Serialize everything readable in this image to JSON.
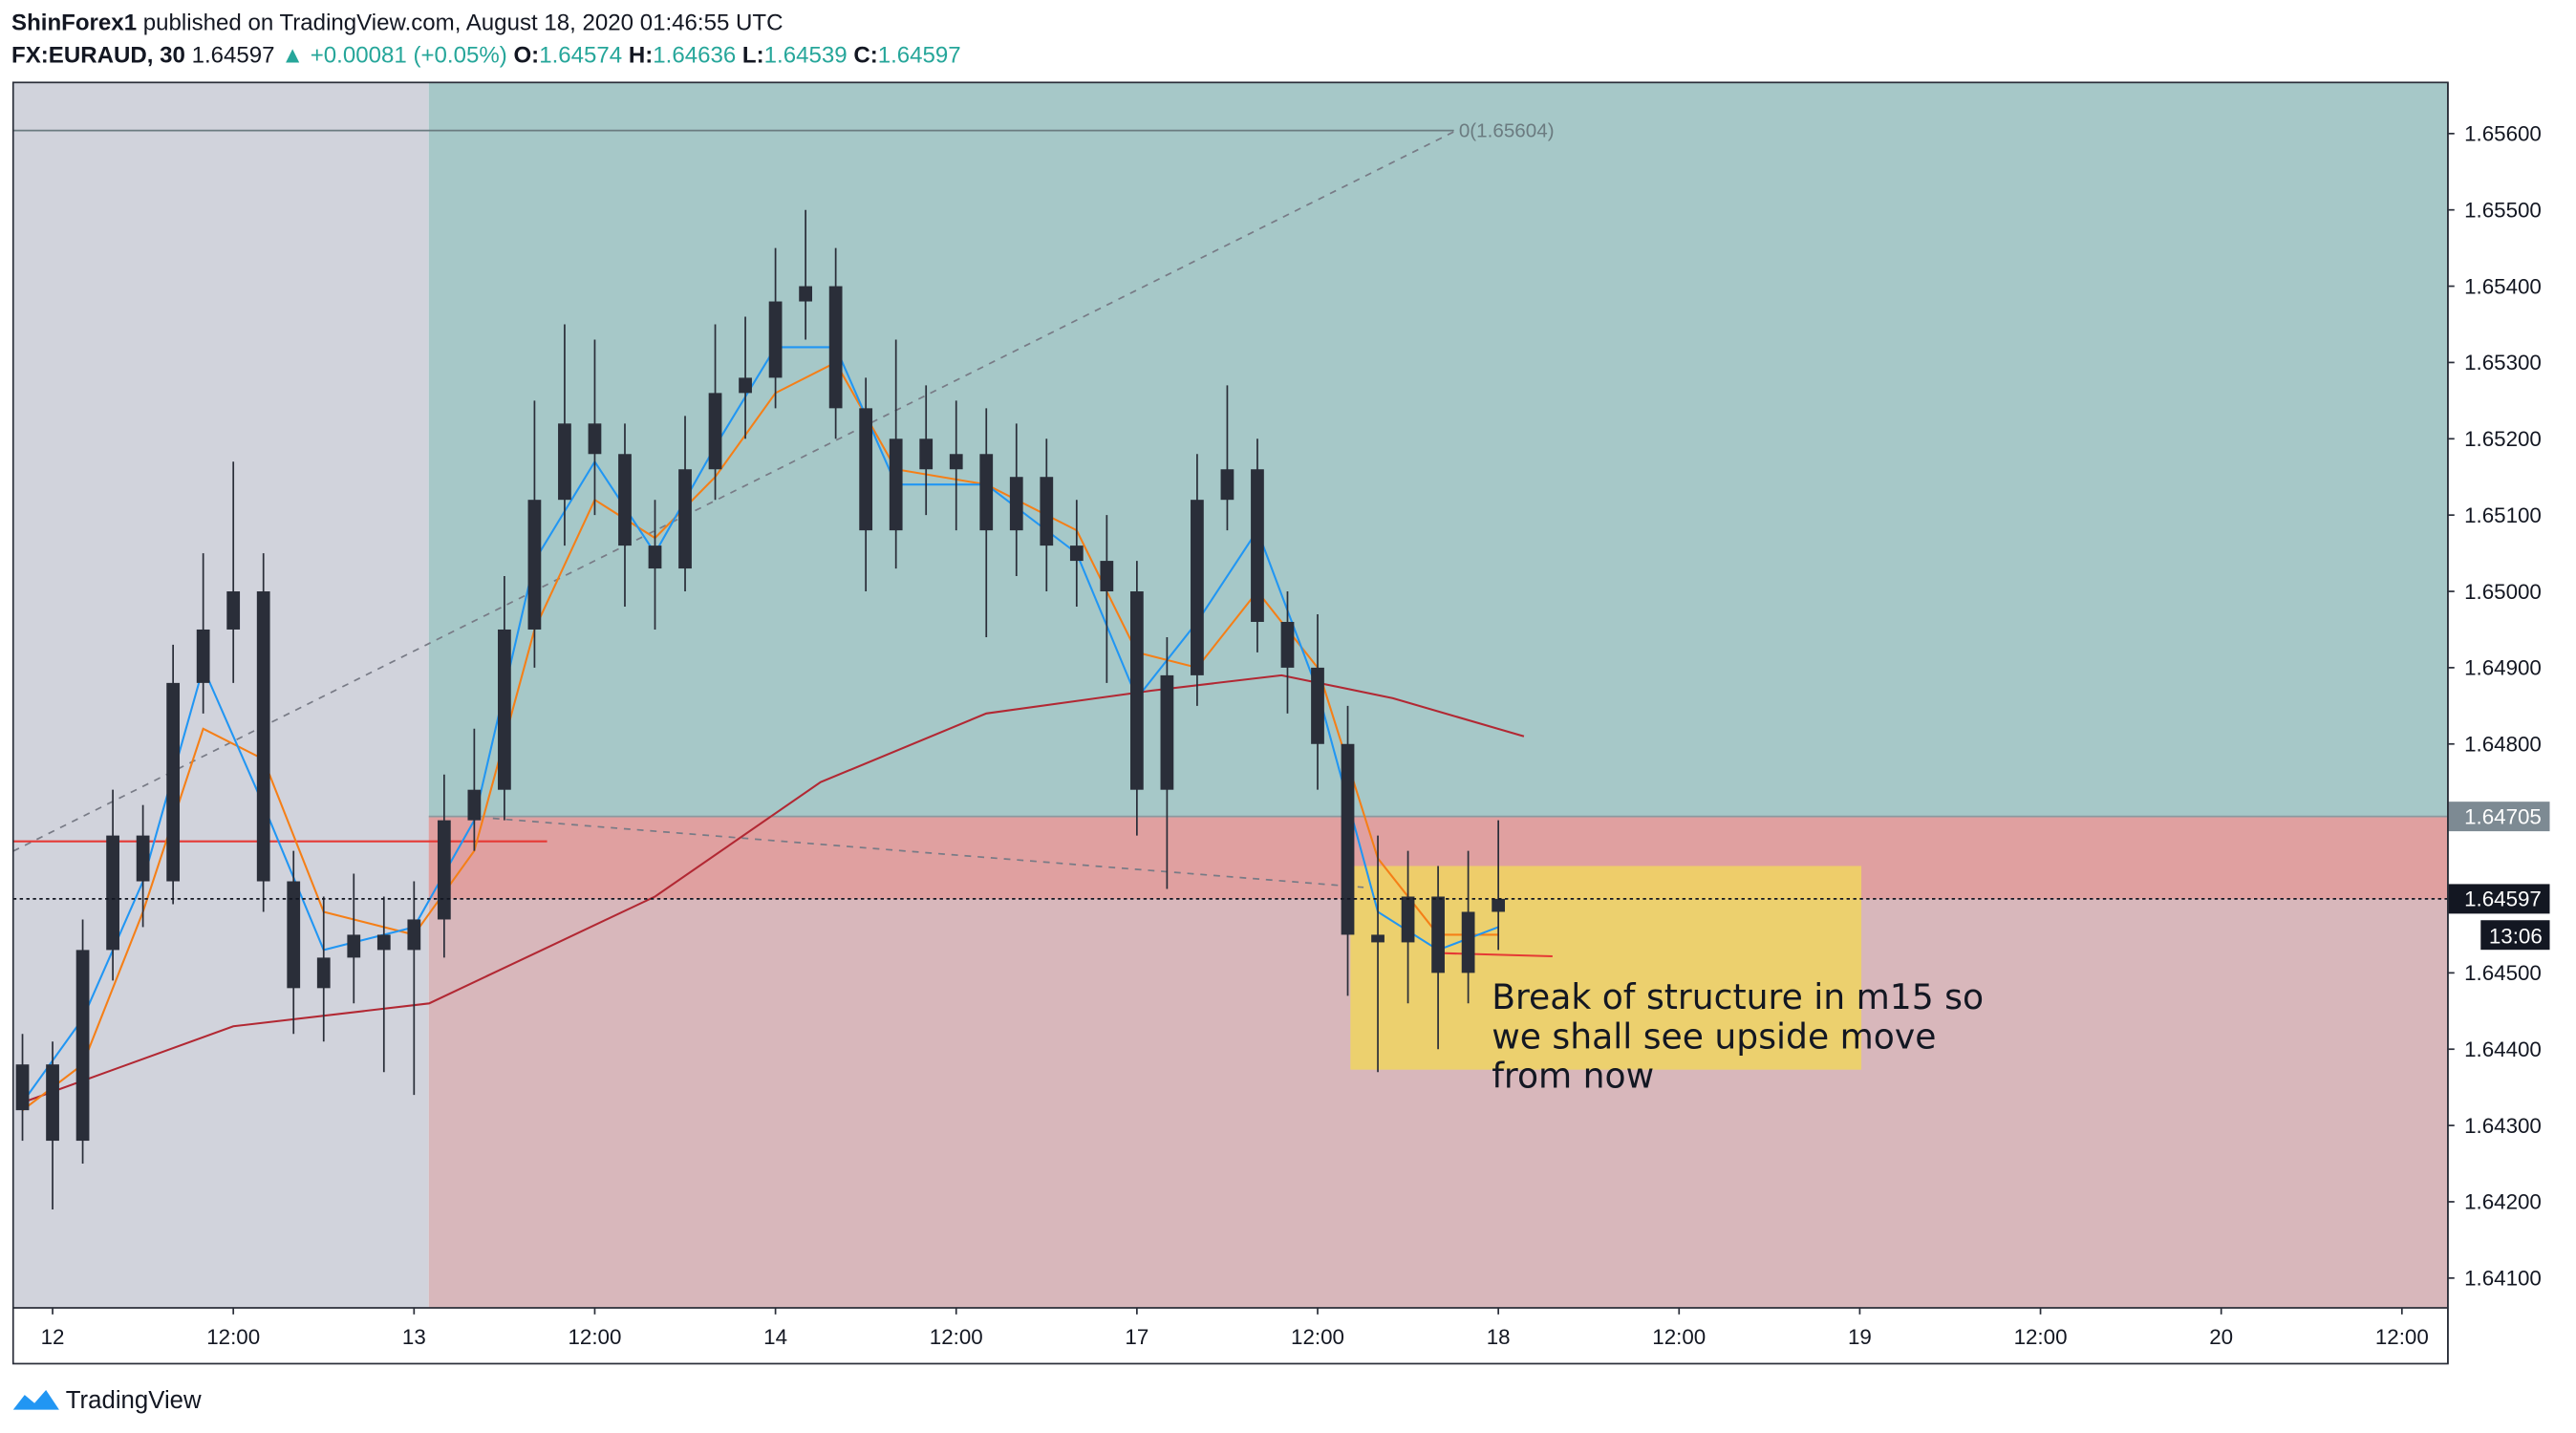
{
  "header": {
    "author": "ShinForex1",
    "published": "published on TradingView.com, August 18, 2020 01:46:55 UTC"
  },
  "symbol": {
    "name": "FX:EURAUD, 30",
    "last": "1.64597",
    "change": "▲ +0.00081 (+0.05%)",
    "o_label": "O:",
    "o": "1.64574",
    "h_label": "H:",
    "h": "1.64636",
    "l_label": "L:",
    "l": "1.64539",
    "c_label": "C:",
    "c": "1.64597"
  },
  "annotation": {
    "lines": [
      "Break of structure in m15 so",
      "we shall see upside move",
      "from now"
    ]
  },
  "footer": {
    "brand": "TradingView"
  },
  "chart_data": {
    "type": "candlestick",
    "xlim": [
      -2.62,
      159.05
    ],
    "ylim": [
      1.64061,
      1.65667
    ],
    "xticks": [
      {
        "value": 0,
        "label": "12"
      },
      {
        "value": 12,
        "label": "12:00"
      },
      {
        "value": 24,
        "label": "13"
      },
      {
        "value": 36,
        "label": "12:00"
      },
      {
        "value": 48,
        "label": "14"
      },
      {
        "value": 60,
        "label": "12:00"
      },
      {
        "value": 72,
        "label": "17"
      },
      {
        "value": 84,
        "label": "12:00"
      },
      {
        "value": 96,
        "label": "18"
      },
      {
        "value": 108,
        "label": "12:00"
      },
      {
        "value": 120,
        "label": "19"
      },
      {
        "value": 132,
        "label": "12:00"
      },
      {
        "value": 144,
        "label": "20"
      },
      {
        "value": 156,
        "label": "12:00"
      }
    ],
    "yticks": [
      {
        "value": 1.656,
        "label": "1.65600"
      },
      {
        "value": 1.655,
        "label": "1.65500"
      },
      {
        "value": 1.654,
        "label": "1.65400"
      },
      {
        "value": 1.653,
        "label": "1.65300"
      },
      {
        "value": 1.652,
        "label": "1.65200"
      },
      {
        "value": 1.651,
        "label": "1.65100"
      },
      {
        "value": 1.65,
        "label": "1.65000"
      },
      {
        "value": 1.649,
        "label": "1.64900"
      },
      {
        "value": 1.648,
        "label": "1.64800"
      },
      {
        "value": 1.645,
        "label": "1.64500"
      },
      {
        "value": 1.644,
        "label": "1.64400"
      },
      {
        "value": 1.643,
        "label": "1.64300"
      },
      {
        "value": 1.642,
        "label": "1.64200"
      },
      {
        "value": 1.641,
        "label": "1.64100"
      }
    ],
    "up_color": "#2a2e39",
    "down_color": "#2a2e39",
    "x": [
      -2,
      0,
      2,
      4,
      6,
      8,
      10,
      12,
      14,
      16,
      18,
      20,
      22,
      24,
      26,
      28,
      30,
      32,
      34,
      36,
      38,
      40,
      42,
      44,
      46,
      48,
      50,
      52,
      54,
      56,
      58,
      60,
      62,
      64,
      66,
      68,
      70,
      72,
      74,
      76,
      78,
      80,
      82,
      84,
      86,
      88,
      90,
      92,
      94,
      96
    ],
    "open": [
      1.6432,
      1.6438,
      1.6428,
      1.6453,
      1.6468,
      1.6462,
      1.6488,
      1.6495,
      1.65,
      1.6462,
      1.6448,
      1.6452,
      1.6455,
      1.6453,
      1.6457,
      1.647,
      1.6474,
      1.6495,
      1.6512,
      1.6522,
      1.6518,
      1.6506,
      1.6503,
      1.6516,
      1.6526,
      1.6528,
      1.6538,
      1.654,
      1.6524,
      1.6508,
      1.652,
      1.6516,
      1.6518,
      1.6508,
      1.6515,
      1.6506,
      1.6504,
      1.65,
      1.6474,
      1.6489,
      1.6512,
      1.6516,
      1.6496,
      1.649,
      1.648,
      1.6455,
      1.6454,
      1.646,
      1.645,
      1.6458
    ],
    "high": [
      1.6442,
      1.6441,
      1.6457,
      1.6474,
      1.6472,
      1.6493,
      1.6505,
      1.6517,
      1.6505,
      1.6466,
      1.646,
      1.6463,
      1.646,
      1.6462,
      1.6476,
      1.6482,
      1.6502,
      1.6525,
      1.6535,
      1.6533,
      1.6522,
      1.6512,
      1.6523,
      1.6535,
      1.6536,
      1.6545,
      1.655,
      1.6545,
      1.6528,
      1.6533,
      1.6527,
      1.6525,
      1.6524,
      1.6522,
      1.652,
      1.6512,
      1.651,
      1.6504,
      1.6494,
      1.6518,
      1.6527,
      1.652,
      1.65,
      1.6497,
      1.6485,
      1.6468,
      1.6466,
      1.6464,
      1.6466,
      1.647
    ],
    "low": [
      1.6428,
      1.6419,
      1.6425,
      1.6449,
      1.6456,
      1.6459,
      1.6484,
      1.6488,
      1.6458,
      1.6442,
      1.6441,
      1.6446,
      1.6437,
      1.6434,
      1.6452,
      1.6466,
      1.647,
      1.649,
      1.6506,
      1.651,
      1.6498,
      1.6495,
      1.65,
      1.6512,
      1.652,
      1.6524,
      1.6533,
      1.652,
      1.65,
      1.6503,
      1.651,
      1.6508,
      1.6494,
      1.6502,
      1.65,
      1.6498,
      1.6488,
      1.6468,
      1.6461,
      1.6485,
      1.6508,
      1.6492,
      1.6484,
      1.6474,
      1.6447,
      1.6437,
      1.6446,
      1.644,
      1.6446,
      1.6453
    ],
    "close": [
      1.6438,
      1.6428,
      1.6453,
      1.6468,
      1.6462,
      1.6488,
      1.6495,
      1.65,
      1.6462,
      1.6448,
      1.6452,
      1.6455,
      1.6453,
      1.6457,
      1.647,
      1.6474,
      1.6495,
      1.6512,
      1.6522,
      1.6518,
      1.6506,
      1.6503,
      1.6516,
      1.6526,
      1.6528,
      1.6538,
      1.654,
      1.6524,
      1.6508,
      1.652,
      1.6516,
      1.6518,
      1.6508,
      1.6515,
      1.6506,
      1.6504,
      1.65,
      1.6474,
      1.6489,
      1.6512,
      1.6516,
      1.6496,
      1.649,
      1.648,
      1.6455,
      1.6454,
      1.646,
      1.645,
      1.6458,
      1.64597
    ],
    "indicators": [
      {
        "color": "#b22833",
        "x": [
          -2,
          12,
          25,
          32.5,
          40,
          51,
          62,
          73,
          81.6,
          89,
          97.7
        ],
        "values": [
          1.6433,
          1.6443,
          1.6446,
          1.6453,
          1.646,
          1.6475,
          1.6484,
          1.6487,
          1.6489,
          1.6486,
          1.6481
        ]
      },
      {
        "color": "#f57f17",
        "x": [
          -2,
          2,
          6,
          10,
          14,
          18,
          24,
          28,
          32,
          36,
          40,
          44,
          48,
          52,
          56,
          62,
          68,
          72,
          76,
          80,
          84,
          88,
          92,
          96
        ],
        "values": [
          1.6432,
          1.6438,
          1.6458,
          1.6482,
          1.6478,
          1.6458,
          1.6455,
          1.6466,
          1.6495,
          1.6512,
          1.6507,
          1.6515,
          1.6526,
          1.653,
          1.6516,
          1.6514,
          1.6508,
          1.6492,
          1.649,
          1.65,
          1.649,
          1.6465,
          1.6455,
          1.6455
        ]
      },
      {
        "color": "#2196f3",
        "x": [
          -2,
          2,
          6,
          10,
          14,
          18,
          24,
          28,
          32,
          36,
          40,
          44,
          48,
          52,
          56,
          62,
          68,
          72,
          76,
          80,
          84,
          88,
          92,
          96
        ],
        "values": [
          1.6433,
          1.6444,
          1.6462,
          1.649,
          1.6472,
          1.6453,
          1.6456,
          1.647,
          1.6504,
          1.6517,
          1.6505,
          1.6519,
          1.6532,
          1.6532,
          1.6514,
          1.6514,
          1.6505,
          1.6486,
          1.6496,
          1.6508,
          1.6487,
          1.6458,
          1.6453,
          1.6456
        ]
      }
    ],
    "entry_level": {
      "value": 1.64705,
      "label": "1.64705"
    },
    "last_price": {
      "value": 1.64597,
      "label": "1.64597"
    },
    "countdown": "13:06",
    "fib_level": 1.65604,
    "fib_label": "0(1.65604)"
  }
}
